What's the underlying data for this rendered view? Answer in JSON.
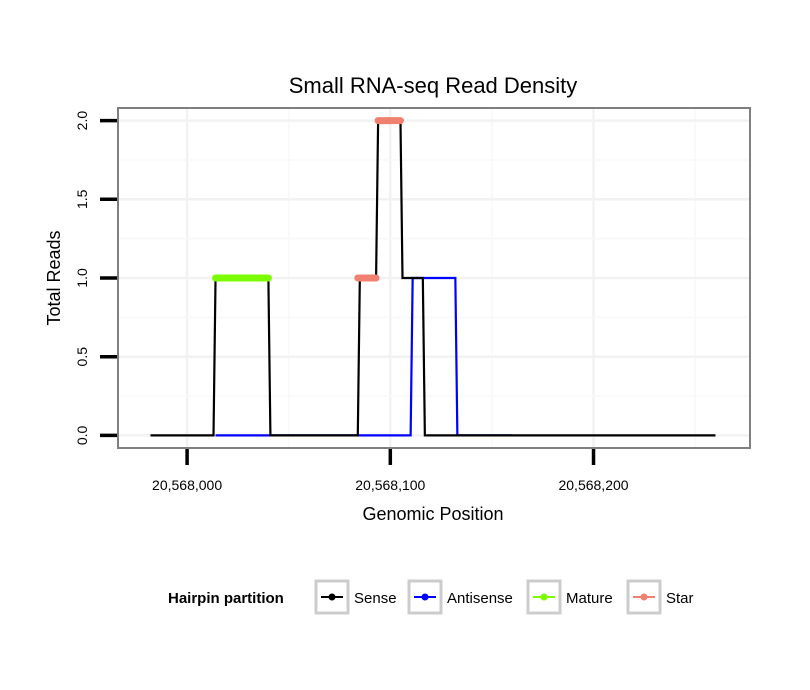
{
  "chart_data": {
    "type": "line",
    "title": "Small RNA-seq Read Density",
    "xlabel": "Genomic Position",
    "ylabel": "Total Reads",
    "xlim": [
      20567966,
      20568277
    ],
    "ylim": [
      -0.08,
      2.08
    ],
    "x_ticks": [
      20568000,
      20568100,
      20568200
    ],
    "x_tick_labels": [
      "20,568,000",
      "20,568,100",
      "20,568,200"
    ],
    "y_ticks": [
      0,
      0.5,
      1,
      1.5,
      2
    ],
    "y_tick_labels": [
      "0.0",
      "0.5",
      "1.0",
      "1.5",
      "2.0"
    ],
    "grid": true,
    "legend_title": "Hairpin partition",
    "legend_position": "bottom",
    "series": [
      {
        "name": "Sense",
        "color": "#000000",
        "kind": "line",
        "points": [
          [
            20567982,
            0
          ],
          [
            20568013,
            0
          ],
          [
            20568014,
            1
          ],
          [
            20568040,
            1
          ],
          [
            20568041,
            0
          ],
          [
            20568084,
            0
          ],
          [
            20568085,
            1
          ],
          [
            20568093,
            1
          ],
          [
            20568094,
            2
          ],
          [
            20568105,
            2
          ],
          [
            20568106,
            1
          ],
          [
            20568116,
            1
          ],
          [
            20568117,
            0
          ],
          [
            20568260,
            0
          ]
        ]
      },
      {
        "name": "Antisense",
        "color": "#0000ff",
        "kind": "line",
        "points": [
          [
            20568014,
            0
          ],
          [
            20568110,
            0
          ],
          [
            20568111,
            1
          ],
          [
            20568132,
            1
          ],
          [
            20568133,
            0
          ],
          [
            20568160,
            0
          ]
        ]
      },
      {
        "name": "Mature",
        "color": "#7cfc00",
        "kind": "segment",
        "points": [
          [
            20568014,
            1
          ],
          [
            20568040,
            1
          ]
        ]
      },
      {
        "name": "Star",
        "color": "#f08070",
        "kind": "segment",
        "segments": [
          [
            [
              20568084,
              1
            ],
            [
              20568093,
              1
            ]
          ],
          [
            [
              20568094,
              2
            ],
            [
              20568105,
              2
            ]
          ]
        ]
      }
    ]
  }
}
